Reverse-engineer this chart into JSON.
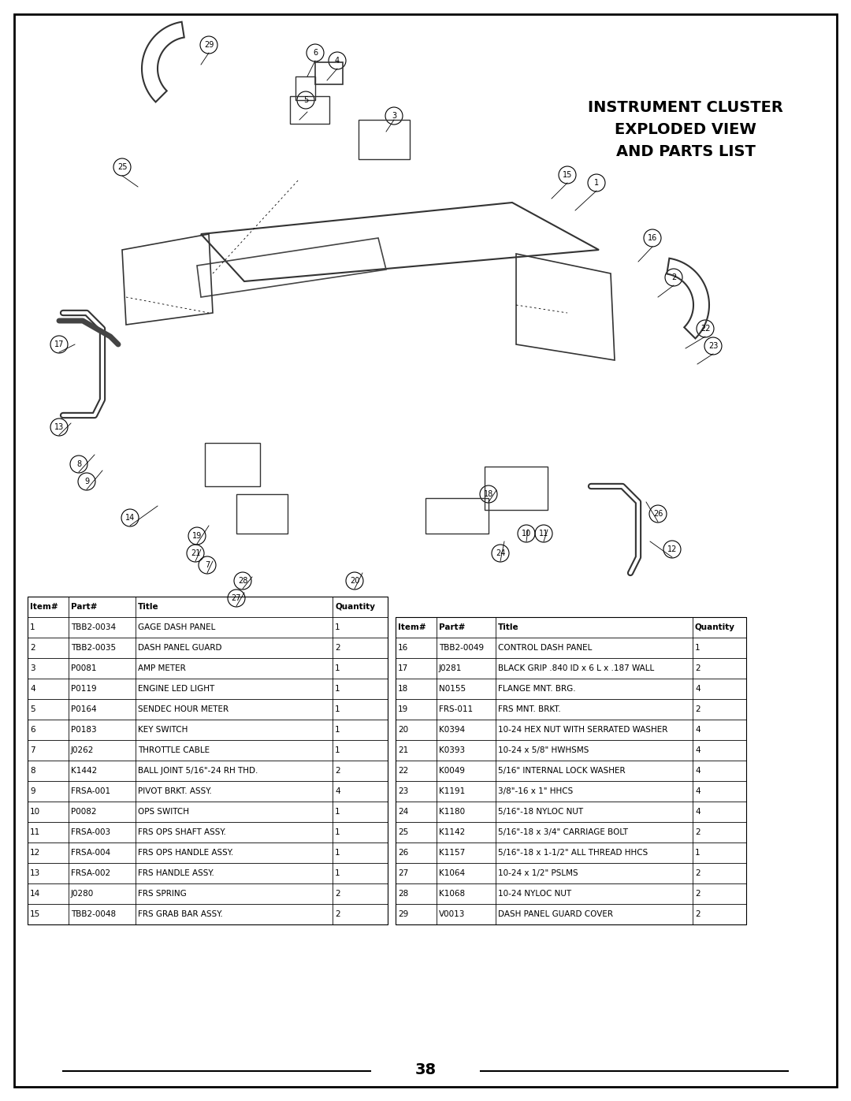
{
  "title": "INSTRUMENT CLUSTER\nEXPLODED VIEW\nAND PARTS LIST",
  "page_number": "38",
  "background_color": "#ffffff",
  "border_color": "#000000",
  "table": {
    "left_headers": [
      "Item#",
      "Part#",
      "Title",
      "Quantity"
    ],
    "right_headers": [
      "Item#",
      "Part#",
      "Title",
      "Quantity"
    ],
    "left_rows": [
      [
        "1",
        "TBB2-0034",
        "GAGE DASH PANEL",
        "1"
      ],
      [
        "2",
        "TBB2-0035",
        "DASH PANEL GUARD",
        "2"
      ],
      [
        "3",
        "P0081",
        "AMP METER",
        "1"
      ],
      [
        "4",
        "P0119",
        "ENGINE LED LIGHT",
        "1"
      ],
      [
        "5",
        "P0164",
        "SENDEC HOUR METER",
        "1"
      ],
      [
        "6",
        "P0183",
        "KEY SWITCH",
        "1"
      ],
      [
        "7",
        "J0262",
        "THROTTLE CABLE",
        "1"
      ],
      [
        "8",
        "K1442",
        "BALL JOINT 5/16\"-24 RH THD.",
        "2"
      ],
      [
        "9",
        "FRSA-001",
        "PIVOT BRKT. ASSY.",
        "4"
      ],
      [
        "10",
        "P0082",
        "OPS SWITCH",
        "1"
      ],
      [
        "11",
        "FRSA-003",
        "FRS OPS SHAFT ASSY.",
        "1"
      ],
      [
        "12",
        "FRSA-004",
        "FRS OPS HANDLE ASSY.",
        "1"
      ],
      [
        "13",
        "FRSA-002",
        "FRS HANDLE ASSY.",
        "1"
      ],
      [
        "14",
        "J0280",
        "FRS SPRING",
        "2"
      ],
      [
        "15",
        "TBB2-0048",
        "FRS GRAB BAR ASSY.",
        "2"
      ]
    ],
    "right_rows": [
      [
        "16",
        "TBB2-0049",
        "CONTROL DASH PANEL",
        "1"
      ],
      [
        "17",
        "J0281",
        "BLACK GRIP .840 ID x 6 L x .187 WALL",
        "2"
      ],
      [
        "18",
        "N0155",
        "FLANGE MNT. BRG.",
        "4"
      ],
      [
        "19",
        "FRS-011",
        "FRS MNT. BRKT.",
        "2"
      ],
      [
        "20",
        "K0394",
        "10-24 HEX NUT WITH SERRATED WASHER",
        "4"
      ],
      [
        "21",
        "K0393",
        "10-24 x 5/8\" HWHSMS",
        "4"
      ],
      [
        "22",
        "K0049",
        "5/16\" INTERNAL LOCK WASHER",
        "4"
      ],
      [
        "23",
        "K1191",
        "3/8\"-16 x 1\" HHCS",
        "4"
      ],
      [
        "24",
        "K1180",
        "5/16\"-18 NYLOC NUT",
        "4"
      ],
      [
        "25",
        "K1142",
        "5/16\"-18 x 3/4\" CARRIAGE BOLT",
        "2"
      ],
      [
        "26",
        "K1157",
        "5/16\"-18 x 1-1/2\" ALL THREAD HHCS",
        "1"
      ],
      [
        "27",
        "K1064",
        "10-24 x 1/2\" PSLMS",
        "2"
      ],
      [
        "28",
        "K1068",
        "10-24 NYLOC NUT",
        "2"
      ],
      [
        "29",
        "V0013",
        "DASH PANEL GUARD COVER",
        "2"
      ]
    ]
  }
}
